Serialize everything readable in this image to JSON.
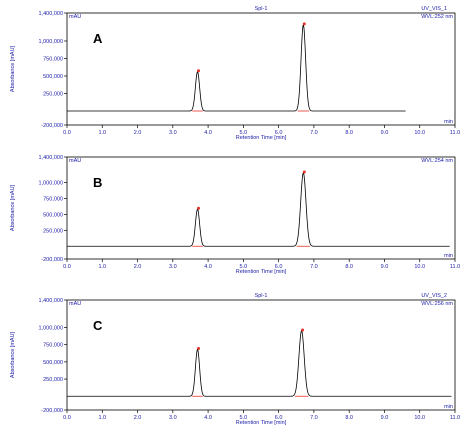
{
  "chart_data": [
    {
      "type": "line",
      "panel_letter": "A",
      "header_center": "Spl-1",
      "header_right": "UV_VIS_1",
      "wavelength_label": "WVL:252 nm",
      "yunit": "mAU",
      "xunit": "min",
      "xlabel": "Retention Time [min]",
      "ylabel": "Absorbance [mAU]",
      "xlim": [
        0,
        11.0
      ],
      "ylim": [
        -200000,
        1400000
      ],
      "yticks": [
        "-200,000",
        "250,000",
        "500,000",
        "750,000",
        "1,000,000",
        "1,400,000"
      ],
      "ytick_values": [
        -200000,
        250000,
        500000,
        750000,
        1000000,
        1400000
      ],
      "xticks": [
        "0.0",
        "1.0",
        "2.0",
        "3.0",
        "4.0",
        "5.0",
        "6.0",
        "7.0",
        "8.0",
        "9.0",
        "10.0",
        "11.0"
      ],
      "baseline": 0,
      "trace_end": 9.6,
      "peaks": [
        {
          "rt": 3.7,
          "height": 560000,
          "width": 0.06
        },
        {
          "rt": 6.7,
          "height": 1230000,
          "width": 0.065
        }
      ],
      "grid": false,
      "colors": {
        "trace": "#000000",
        "marker": "#e8322a",
        "axis": "#1a1aa6"
      }
    },
    {
      "type": "line",
      "panel_letter": "B",
      "header_center": "",
      "header_right": "",
      "wavelength_label": "WVL:254 nm",
      "yunit": "mAU",
      "xunit": "min",
      "xlabel": "Retention Time [min]",
      "ylabel": "Absorbance [mAU]",
      "xlim": [
        0,
        11.0
      ],
      "ylim": [
        -200000,
        1400000
      ],
      "yticks": [
        "-200,000",
        "250,000",
        "500,000",
        "750,000",
        "1,000,000",
        "1,400,000"
      ],
      "ytick_values": [
        -200000,
        250000,
        500000,
        750000,
        1000000,
        1400000
      ],
      "xticks": [
        "0.0",
        "1.0",
        "2.0",
        "3.0",
        "4.0",
        "5.0",
        "6.0",
        "7.0",
        "8.0",
        "9.0",
        "10.0",
        "11.0"
      ],
      "baseline": 0,
      "trace_end": 10.85,
      "peaks": [
        {
          "rt": 3.7,
          "height": 580000,
          "width": 0.06
        },
        {
          "rt": 6.7,
          "height": 1150000,
          "width": 0.075
        }
      ],
      "grid": false,
      "colors": {
        "trace": "#000000",
        "marker": "#e8322a",
        "axis": "#1a1aa6"
      }
    },
    {
      "type": "line",
      "panel_letter": "C",
      "header_center": "Spl-1",
      "header_right": "UV_VIS_2",
      "wavelength_label": "WVL:256 nm",
      "yunit": "mAU",
      "xunit": "min",
      "xlabel": "Retention Time [min]",
      "ylabel": "Absorbance [mAU]",
      "xlim": [
        0,
        11.0
      ],
      "ylim": [
        -200000,
        1400000
      ],
      "yticks": [
        "-200,000",
        "250,000",
        "500,000",
        "750,000",
        "1,000,000",
        "1,400,000"
      ],
      "ytick_values": [
        -200000,
        250000,
        500000,
        750000,
        1000000,
        1400000
      ],
      "xticks": [
        "0.0",
        "1.0",
        "2.0",
        "3.0",
        "4.0",
        "5.0",
        "6.0",
        "7.0",
        "8.0",
        "9.0",
        "10.0",
        "11.0"
      ],
      "baseline": 0,
      "trace_end": 10.9,
      "peaks": [
        {
          "rt": 3.7,
          "height": 680000,
          "width": 0.06
        },
        {
          "rt": 6.65,
          "height": 950000,
          "width": 0.075
        }
      ],
      "grid": false,
      "colors": {
        "trace": "#000000",
        "marker": "#e8322a",
        "axis": "#1a1aa6"
      }
    }
  ]
}
